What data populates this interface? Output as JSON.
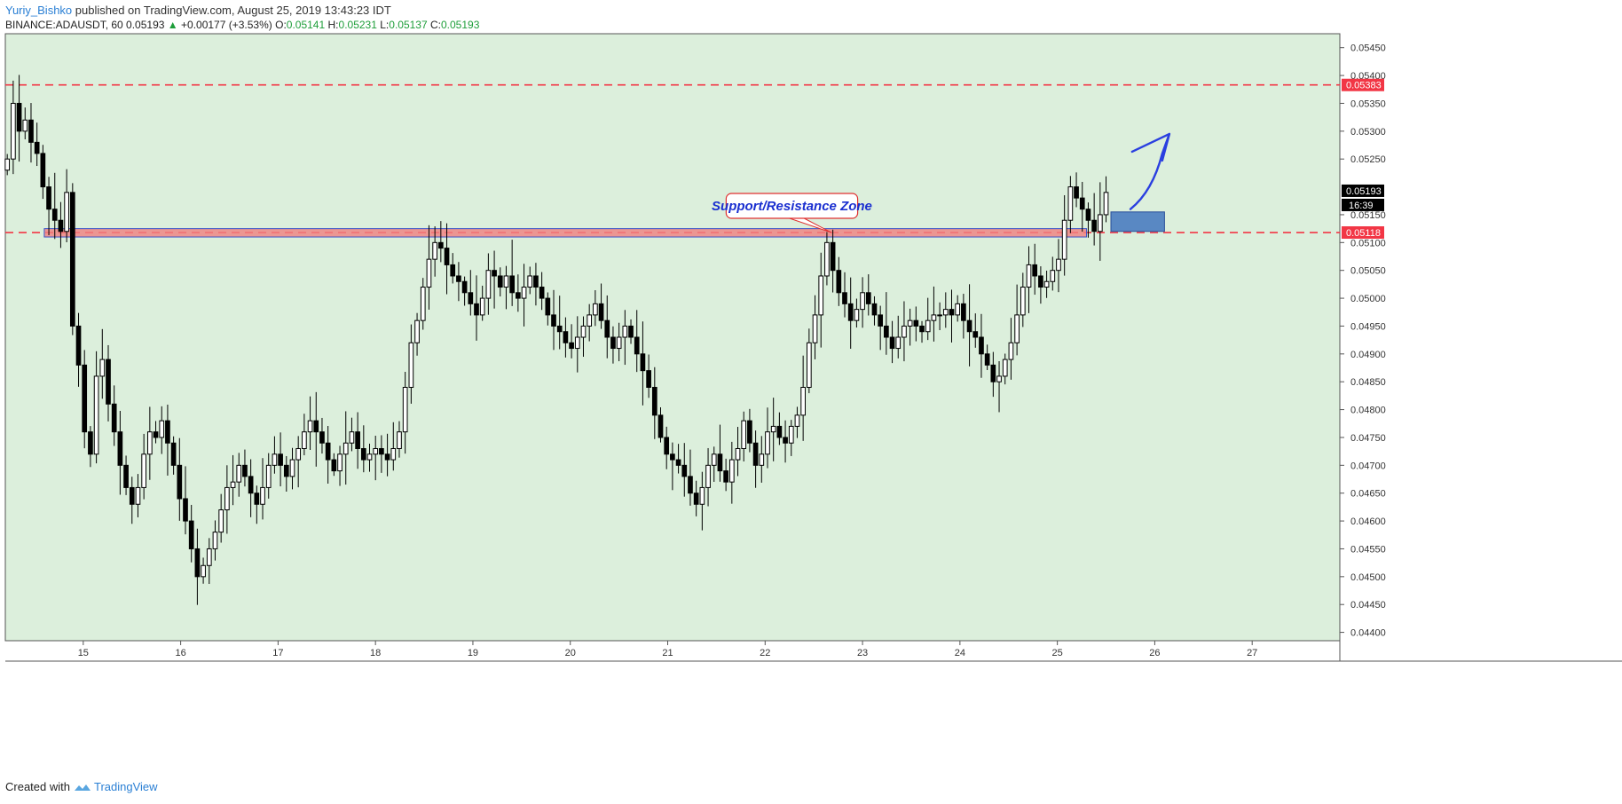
{
  "header": {
    "author": "Yuriy_Bishko",
    "published_text": "published on TradingView.com, August 25, 2019 13:43:23 IDT",
    "symbol": "BINANCE:ADAUSDT, 60",
    "last": "0.05193",
    "change_arrow": "▲",
    "change": "+0.00177 (+3.53%)",
    "o_label": "O:",
    "o": "0.05141",
    "h_label": "H:",
    "h": "0.05231",
    "l_label": "L:",
    "l": "0.05137",
    "c_label": "C:",
    "c": "0.05193"
  },
  "footer": {
    "created_with": "Created with",
    "brand": "TradingView"
  },
  "colors": {
    "background": "#dcefdc",
    "candle": "#000000",
    "level_line": "#f23645",
    "zone_fill": "#f08080",
    "entry_box": "#4a7cc0",
    "arrow": "#2a3fe0",
    "callout_text": "#1a2fd0"
  },
  "chart_data": {
    "type": "candlestick",
    "x_ticks": [
      "15",
      "16",
      "17",
      "18",
      "19",
      "20",
      "21",
      "22",
      "23",
      "24",
      "25",
      "26",
      "27"
    ],
    "y_ticks": [
      "0.05450",
      "0.05400",
      "0.05350",
      "0.05300",
      "0.05250",
      "0.05150",
      "0.05100",
      "0.05050",
      "0.05000",
      "0.04950",
      "0.04900",
      "0.04850",
      "0.04800",
      "0.04750",
      "0.04700",
      "0.04650",
      "0.04600",
      "0.04550",
      "0.04500",
      "0.04450",
      "0.04400"
    ],
    "ylim": [
      0.04385,
      0.05475
    ],
    "xlim": [
      14.2,
      27.9
    ],
    "price_labels": {
      "resistance": "0.05383",
      "current": "0.05193",
      "countdown": "16:39",
      "support": "0.05118"
    },
    "levels": {
      "resistance": 0.05383,
      "support": 0.05118
    },
    "annotation": "Support/Resistance Zone",
    "zone": {
      "from": 0.0511,
      "to": 0.05125
    },
    "closes": [
      0.0525,
      0.0535,
      0.053,
      0.0532,
      0.0528,
      0.0526,
      0.052,
      0.0516,
      0.0514,
      0.0512,
      0.0519,
      0.0495,
      0.0488,
      0.0476,
      0.0472,
      0.0486,
      0.0489,
      0.0481,
      0.0476,
      0.047,
      0.0466,
      0.0463,
      0.0466,
      0.0472,
      0.0476,
      0.0475,
      0.0478,
      0.0474,
      0.047,
      0.0464,
      0.046,
      0.0455,
      0.045,
      0.0452,
      0.0455,
      0.0458,
      0.0462,
      0.0466,
      0.0467,
      0.047,
      0.0468,
      0.0465,
      0.0463,
      0.0466,
      0.047,
      0.0472,
      0.047,
      0.0468,
      0.0471,
      0.0473,
      0.0476,
      0.0478,
      0.0476,
      0.0474,
      0.0471,
      0.0469,
      0.0472,
      0.0474,
      0.0476,
      0.0473,
      0.0471,
      0.0472,
      0.0473,
      0.0472,
      0.0471,
      0.0473,
      0.0476,
      0.0484,
      0.0492,
      0.0496,
      0.0502,
      0.0507,
      0.051,
      0.0509,
      0.0506,
      0.0504,
      0.0503,
      0.0501,
      0.0499,
      0.0497,
      0.05,
      0.0505,
      0.0504,
      0.0502,
      0.0504,
      0.0501,
      0.05,
      0.0502,
      0.0504,
      0.0502,
      0.05,
      0.0497,
      0.0495,
      0.0494,
      0.0492,
      0.0491,
      0.0493,
      0.0495,
      0.0497,
      0.0499,
      0.0496,
      0.0493,
      0.0491,
      0.0493,
      0.0495,
      0.0493,
      0.049,
      0.0487,
      0.0484,
      0.0479,
      0.0475,
      0.0472,
      0.0471,
      0.047,
      0.0468,
      0.0465,
      0.0463,
      0.0466,
      0.047,
      0.0472,
      0.0469,
      0.0467,
      0.0471,
      0.0473,
      0.0478,
      0.0474,
      0.047,
      0.0472,
      0.0476,
      0.0477,
      0.0475,
      0.0474,
      0.0477,
      0.0479,
      0.0484,
      0.0492,
      0.0497,
      0.0504,
      0.051,
      0.0505,
      0.0501,
      0.0499,
      0.0496,
      0.0498,
      0.0501,
      0.0499,
      0.0497,
      0.0495,
      0.0493,
      0.0491,
      0.0493,
      0.0495,
      0.0496,
      0.0495,
      0.0494,
      0.0496,
      0.0497,
      0.0497,
      0.0498,
      0.0497,
      0.0499,
      0.0496,
      0.0494,
      0.0493,
      0.049,
      0.0488,
      0.0485,
      0.0486,
      0.0489,
      0.0492,
      0.0497,
      0.0502,
      0.0506,
      0.0504,
      0.0502,
      0.0503,
      0.0505,
      0.0507,
      0.0514,
      0.052,
      0.0518,
      0.0516,
      0.0514,
      0.0512,
      0.0515,
      0.0519
    ]
  }
}
